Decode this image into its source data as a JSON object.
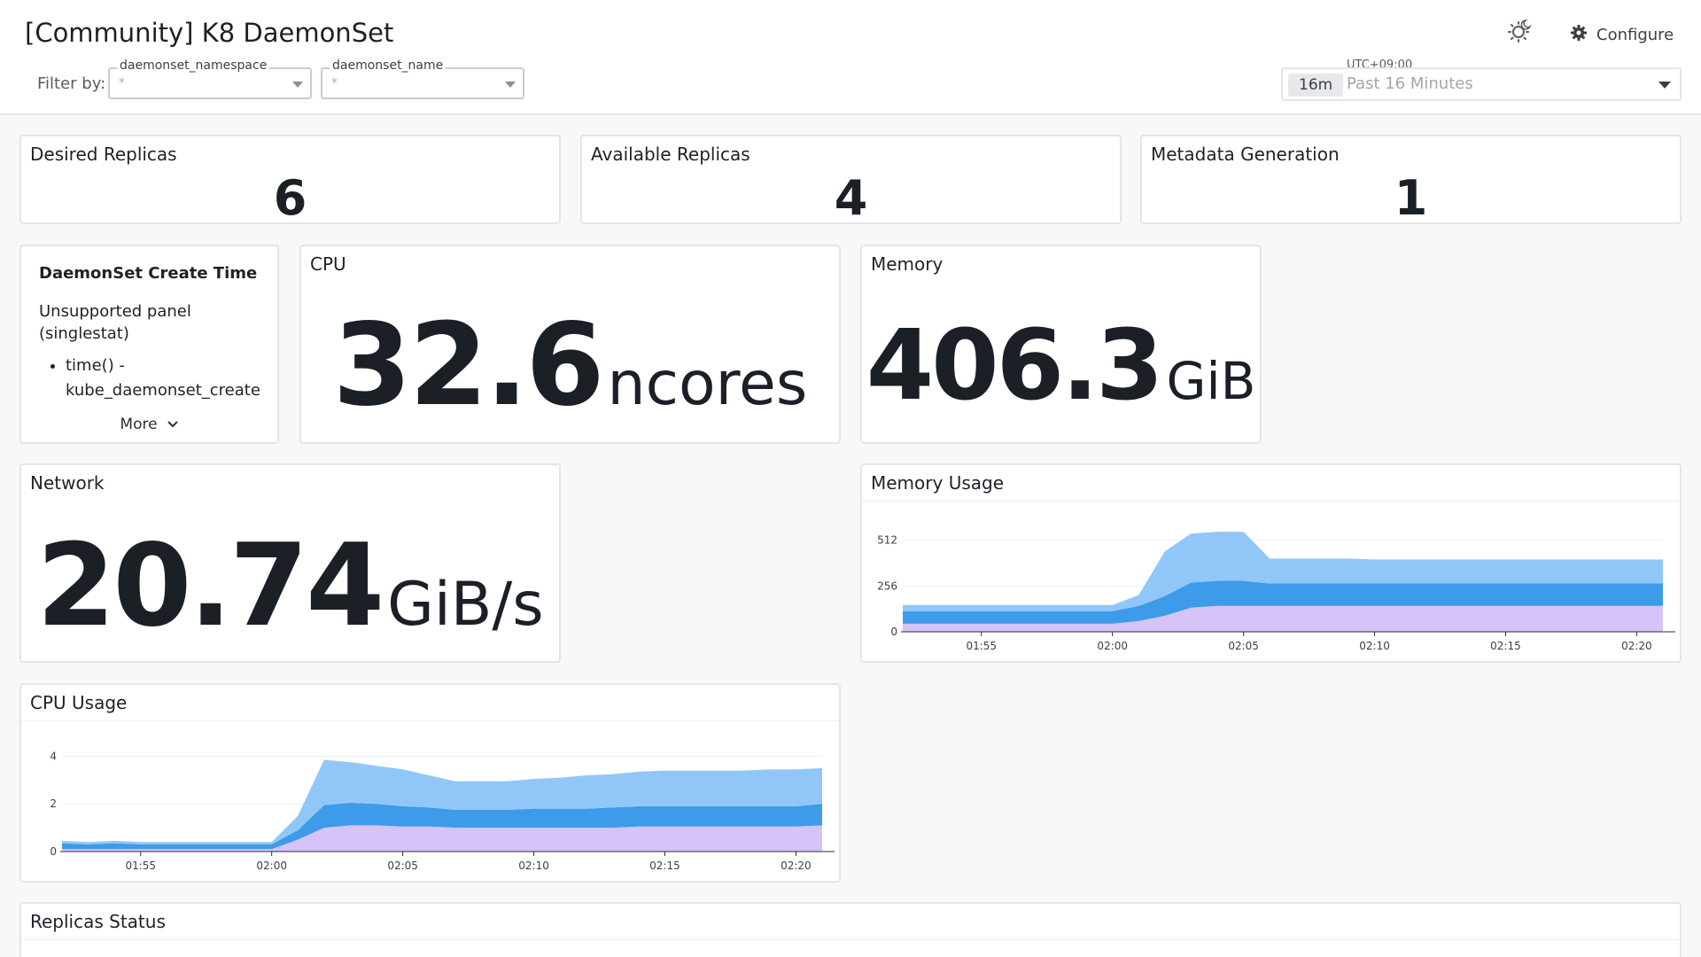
{
  "header": {
    "title": "[Community] K8 DaemonSet",
    "filter_label": "Filter by:",
    "filters": [
      {
        "label": "daemonset_namespace",
        "value": "*"
      },
      {
        "label": "daemonset_name",
        "value": "*"
      }
    ],
    "configure_label": "Configure",
    "timezone": "UTC+09:00",
    "time_badge": "16m",
    "time_range": "Past 16 Minutes"
  },
  "panels": {
    "desired": {
      "title": "Desired Replicas",
      "value": "6"
    },
    "available": {
      "title": "Available Replicas",
      "value": "4"
    },
    "metadata": {
      "title": "Metadata Generation",
      "value": "1"
    },
    "create_time": {
      "heading": "DaemonSet Create Time",
      "text": "Unsupported panel (singlestat)",
      "bullet": "time() - kube_daemonset_create",
      "more_label": "More"
    },
    "cpu": {
      "title": "CPU",
      "value": "32.6",
      "unit": "ncores"
    },
    "memory": {
      "title": "Memory",
      "value": "406.3",
      "unit": "GiB"
    },
    "network": {
      "title": "Network",
      "value": "20.74",
      "unit": "GiB/s"
    },
    "memory_usage": {
      "title": "Memory Usage"
    },
    "cpu_usage": {
      "title": "CPU Usage"
    },
    "replicas_status": {
      "title": "Replicas Status"
    }
  },
  "colors": {
    "series_light_blue": "#91c7f8",
    "series_blue": "#3d9be9",
    "series_purple": "#d6c3f7",
    "accent_text": "#1b2027"
  },
  "chart_data": [
    {
      "type": "area",
      "title": "Memory Usage",
      "x": [
        "01:52",
        "01:53",
        "01:54",
        "01:55",
        "01:56",
        "01:57",
        "01:58",
        "01:59",
        "02:00",
        "02:01",
        "02:02",
        "02:03",
        "02:04",
        "02:05",
        "02:06",
        "02:07",
        "02:08",
        "02:09",
        "02:10",
        "02:11",
        "02:12",
        "02:13",
        "02:14",
        "02:15",
        "02:16",
        "02:17",
        "02:18",
        "02:19",
        "02:20",
        "02:21"
      ],
      "x_ticks": [
        "01:55",
        "02:00",
        "02:05",
        "02:10",
        "02:15",
        "02:20"
      ],
      "y_ticks": [
        0,
        256,
        512
      ],
      "ylim": [
        0,
        600
      ],
      "stacked": true,
      "series": [
        {
          "values": [
            45,
            45,
            45,
            45,
            45,
            45,
            45,
            45,
            45,
            60,
            90,
            135,
            145,
            145,
            145,
            145,
            145,
            145,
            145,
            145,
            145,
            145,
            145,
            145,
            145,
            145,
            145,
            145,
            145,
            145
          ]
        },
        {
          "values": [
            70,
            70,
            70,
            70,
            70,
            70,
            70,
            70,
            70,
            85,
            110,
            140,
            140,
            140,
            125,
            125,
            125,
            125,
            125,
            125,
            125,
            125,
            125,
            125,
            125,
            125,
            125,
            125,
            125,
            125
          ]
        },
        {
          "values": [
            35,
            35,
            35,
            35,
            35,
            35,
            35,
            35,
            35,
            60,
            250,
            275,
            275,
            275,
            140,
            140,
            140,
            140,
            135,
            135,
            135,
            135,
            135,
            135,
            135,
            135,
            135,
            135,
            135,
            135
          ]
        }
      ]
    },
    {
      "type": "area",
      "title": "CPU Usage",
      "x": [
        "01:52",
        "01:53",
        "01:54",
        "01:55",
        "01:56",
        "01:57",
        "01:58",
        "01:59",
        "02:00",
        "02:01",
        "02:02",
        "02:03",
        "02:04",
        "02:05",
        "02:06",
        "02:07",
        "02:08",
        "02:09",
        "02:10",
        "02:11",
        "02:12",
        "02:13",
        "02:14",
        "02:15",
        "02:16",
        "02:17",
        "02:18",
        "02:19",
        "02:20",
        "02:21"
      ],
      "x_ticks": [
        "01:55",
        "02:00",
        "02:05",
        "02:10",
        "02:15",
        "02:20"
      ],
      "y_ticks": [
        0,
        2,
        4
      ],
      "ylim": [
        0,
        4.5
      ],
      "stacked": true,
      "series": [
        {
          "values": [
            0.1,
            0.1,
            0.1,
            0.1,
            0.1,
            0.1,
            0.1,
            0.1,
            0.1,
            0.5,
            1.0,
            1.1,
            1.1,
            1.05,
            1.05,
            1.0,
            1.0,
            1.0,
            1.0,
            1.0,
            1.0,
            1.0,
            1.05,
            1.05,
            1.05,
            1.05,
            1.05,
            1.05,
            1.05,
            1.1
          ]
        },
        {
          "values": [
            0.25,
            0.2,
            0.25,
            0.2,
            0.2,
            0.2,
            0.2,
            0.2,
            0.2,
            0.4,
            0.95,
            0.95,
            0.9,
            0.85,
            0.8,
            0.75,
            0.75,
            0.75,
            0.8,
            0.8,
            0.8,
            0.85,
            0.85,
            0.85,
            0.85,
            0.85,
            0.85,
            0.85,
            0.85,
            0.9
          ]
        },
        {
          "values": [
            0.1,
            0.1,
            0.1,
            0.1,
            0.1,
            0.1,
            0.1,
            0.1,
            0.1,
            0.6,
            1.9,
            1.7,
            1.6,
            1.55,
            1.35,
            1.2,
            1.2,
            1.2,
            1.25,
            1.3,
            1.4,
            1.4,
            1.45,
            1.5,
            1.5,
            1.5,
            1.5,
            1.55,
            1.55,
            1.5
          ]
        }
      ]
    }
  ]
}
